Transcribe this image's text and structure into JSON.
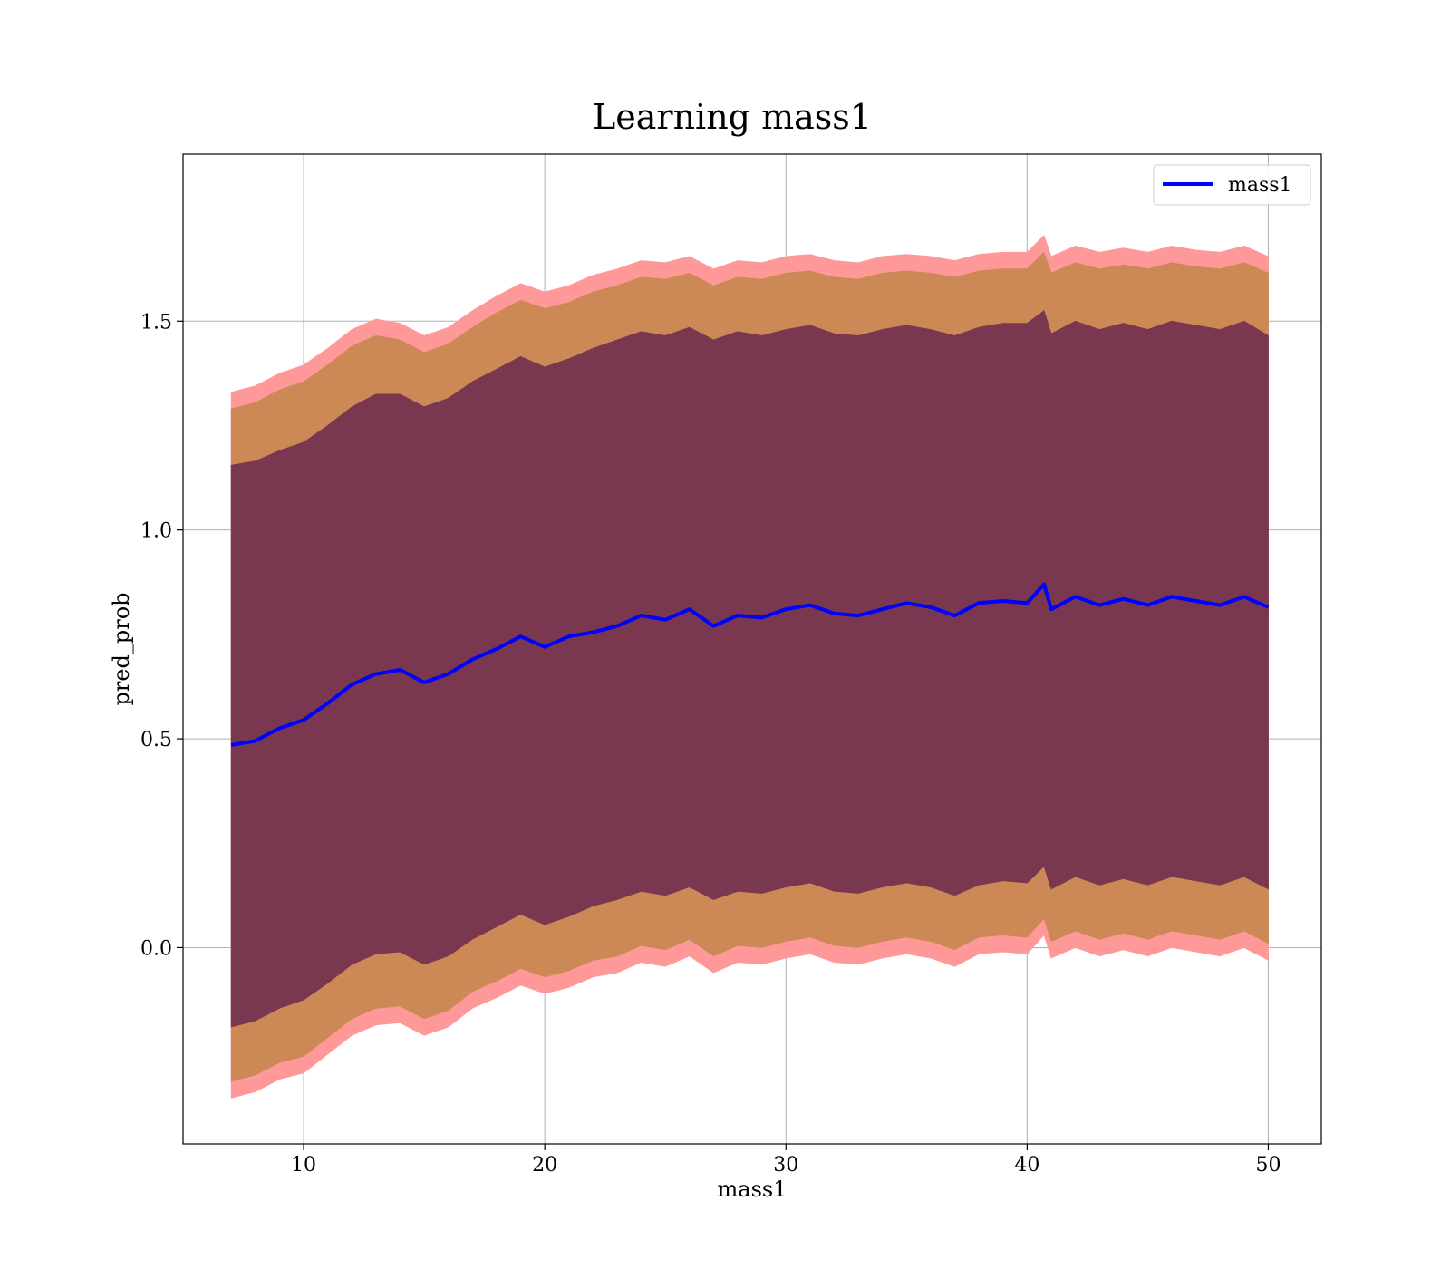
{
  "chart_data": {
    "type": "area",
    "title": "Learning mass1",
    "xlabel": "mass1",
    "ylabel": "pred_prob",
    "xlim": [
      5,
      52.2
    ],
    "ylim": [
      -0.47,
      1.9
    ],
    "x_ticks": [
      10,
      20,
      30,
      40,
      50
    ],
    "x_tick_labels": [
      "10",
      "20",
      "30",
      "40",
      "50"
    ],
    "y_ticks": [
      0.0,
      0.5,
      1.0,
      1.5
    ],
    "y_tick_labels": [
      "0.0",
      "0.5",
      "1.0",
      "1.5"
    ],
    "grid": true,
    "legend_position": "upper-right",
    "series": [
      {
        "name": "mass1",
        "color": "#0000ff",
        "x": [
          7.0,
          8.0,
          9.0,
          10.0,
          11.0,
          12.0,
          13.0,
          14.0,
          15.0,
          16.0,
          17.0,
          18.0,
          19.0,
          20.0,
          21.0,
          22.0,
          23.0,
          24.0,
          25.0,
          26.0,
          27.0,
          28.0,
          29.0,
          30.0,
          31.0,
          32.0,
          33.0,
          34.0,
          35.0,
          36.0,
          37.0,
          38.0,
          39.0,
          40.0,
          40.7,
          41.0,
          42.0,
          43.0,
          44.0,
          45.0,
          46.0,
          47.0,
          48.0,
          49.0,
          50.0
        ],
        "y": [
          0.485,
          0.495,
          0.525,
          0.545,
          0.585,
          0.63,
          0.655,
          0.665,
          0.635,
          0.655,
          0.69,
          0.715,
          0.745,
          0.72,
          0.745,
          0.755,
          0.77,
          0.795,
          0.785,
          0.81,
          0.77,
          0.795,
          0.79,
          0.81,
          0.82,
          0.8,
          0.795,
          0.81,
          0.825,
          0.815,
          0.795,
          0.825,
          0.83,
          0.825,
          0.87,
          0.81,
          0.84,
          0.82,
          0.835,
          0.82,
          0.84,
          0.83,
          0.82,
          0.84,
          0.815
        ]
      }
    ],
    "bands": [
      {
        "name": "outer",
        "color": "#ff9999",
        "upper": [
          1.33,
          1.345,
          1.375,
          1.395,
          1.435,
          1.48,
          1.505,
          1.495,
          1.465,
          1.485,
          1.525,
          1.56,
          1.59,
          1.57,
          1.585,
          1.61,
          1.625,
          1.645,
          1.64,
          1.655,
          1.625,
          1.645,
          1.64,
          1.655,
          1.66,
          1.645,
          1.64,
          1.655,
          1.66,
          1.655,
          1.645,
          1.66,
          1.665,
          1.665,
          1.705,
          1.655,
          1.68,
          1.665,
          1.675,
          1.665,
          1.68,
          1.67,
          1.665,
          1.68,
          1.655
        ],
        "lower": [
          -0.36,
          -0.345,
          -0.315,
          -0.3,
          -0.255,
          -0.21,
          -0.185,
          -0.18,
          -0.21,
          -0.19,
          -0.145,
          -0.12,
          -0.09,
          -0.11,
          -0.095,
          -0.07,
          -0.06,
          -0.035,
          -0.045,
          -0.02,
          -0.06,
          -0.035,
          -0.04,
          -0.025,
          -0.015,
          -0.035,
          -0.04,
          -0.025,
          -0.015,
          -0.025,
          -0.045,
          -0.015,
          -0.01,
          -0.015,
          0.03,
          -0.025,
          0.0,
          -0.02,
          -0.005,
          -0.02,
          0.0,
          -0.01,
          -0.02,
          0.0,
          -0.03
        ]
      },
      {
        "name": "middle",
        "color": "#cc8855",
        "upper": [
          1.29,
          1.305,
          1.335,
          1.355,
          1.395,
          1.44,
          1.465,
          1.455,
          1.425,
          1.445,
          1.485,
          1.52,
          1.55,
          1.53,
          1.545,
          1.57,
          1.585,
          1.605,
          1.6,
          1.615,
          1.585,
          1.605,
          1.6,
          1.615,
          1.62,
          1.605,
          1.6,
          1.615,
          1.62,
          1.615,
          1.605,
          1.62,
          1.625,
          1.625,
          1.665,
          1.615,
          1.64,
          1.625,
          1.635,
          1.625,
          1.64,
          1.63,
          1.625,
          1.64,
          1.615
        ],
        "lower": [
          -0.32,
          -0.305,
          -0.275,
          -0.26,
          -0.215,
          -0.17,
          -0.145,
          -0.14,
          -0.17,
          -0.15,
          -0.105,
          -0.08,
          -0.05,
          -0.07,
          -0.055,
          -0.03,
          -0.02,
          0.005,
          -0.005,
          0.02,
          -0.02,
          0.005,
          0.0,
          0.015,
          0.025,
          0.005,
          0.0,
          0.015,
          0.025,
          0.015,
          -0.005,
          0.025,
          0.03,
          0.025,
          0.07,
          0.015,
          0.04,
          0.02,
          0.035,
          0.02,
          0.04,
          0.03,
          0.02,
          0.04,
          0.01
        ]
      },
      {
        "name": "inner",
        "color": "#7a3850",
        "upper": [
          1.155,
          1.165,
          1.19,
          1.21,
          1.25,
          1.295,
          1.325,
          1.325,
          1.295,
          1.315,
          1.355,
          1.385,
          1.415,
          1.39,
          1.41,
          1.435,
          1.455,
          1.475,
          1.465,
          1.485,
          1.455,
          1.475,
          1.465,
          1.48,
          1.49,
          1.47,
          1.465,
          1.48,
          1.49,
          1.48,
          1.465,
          1.485,
          1.495,
          1.495,
          1.525,
          1.47,
          1.5,
          1.48,
          1.495,
          1.48,
          1.5,
          1.49,
          1.48,
          1.5,
          1.465
        ],
        "lower": [
          -0.19,
          -0.175,
          -0.145,
          -0.125,
          -0.085,
          -0.04,
          -0.015,
          -0.01,
          -0.04,
          -0.02,
          0.02,
          0.05,
          0.08,
          0.055,
          0.075,
          0.1,
          0.115,
          0.135,
          0.125,
          0.145,
          0.115,
          0.135,
          0.13,
          0.145,
          0.155,
          0.135,
          0.13,
          0.145,
          0.155,
          0.145,
          0.125,
          0.15,
          0.16,
          0.155,
          0.195,
          0.14,
          0.17,
          0.15,
          0.165,
          0.15,
          0.17,
          0.16,
          0.15,
          0.17,
          0.14
        ]
      }
    ]
  }
}
